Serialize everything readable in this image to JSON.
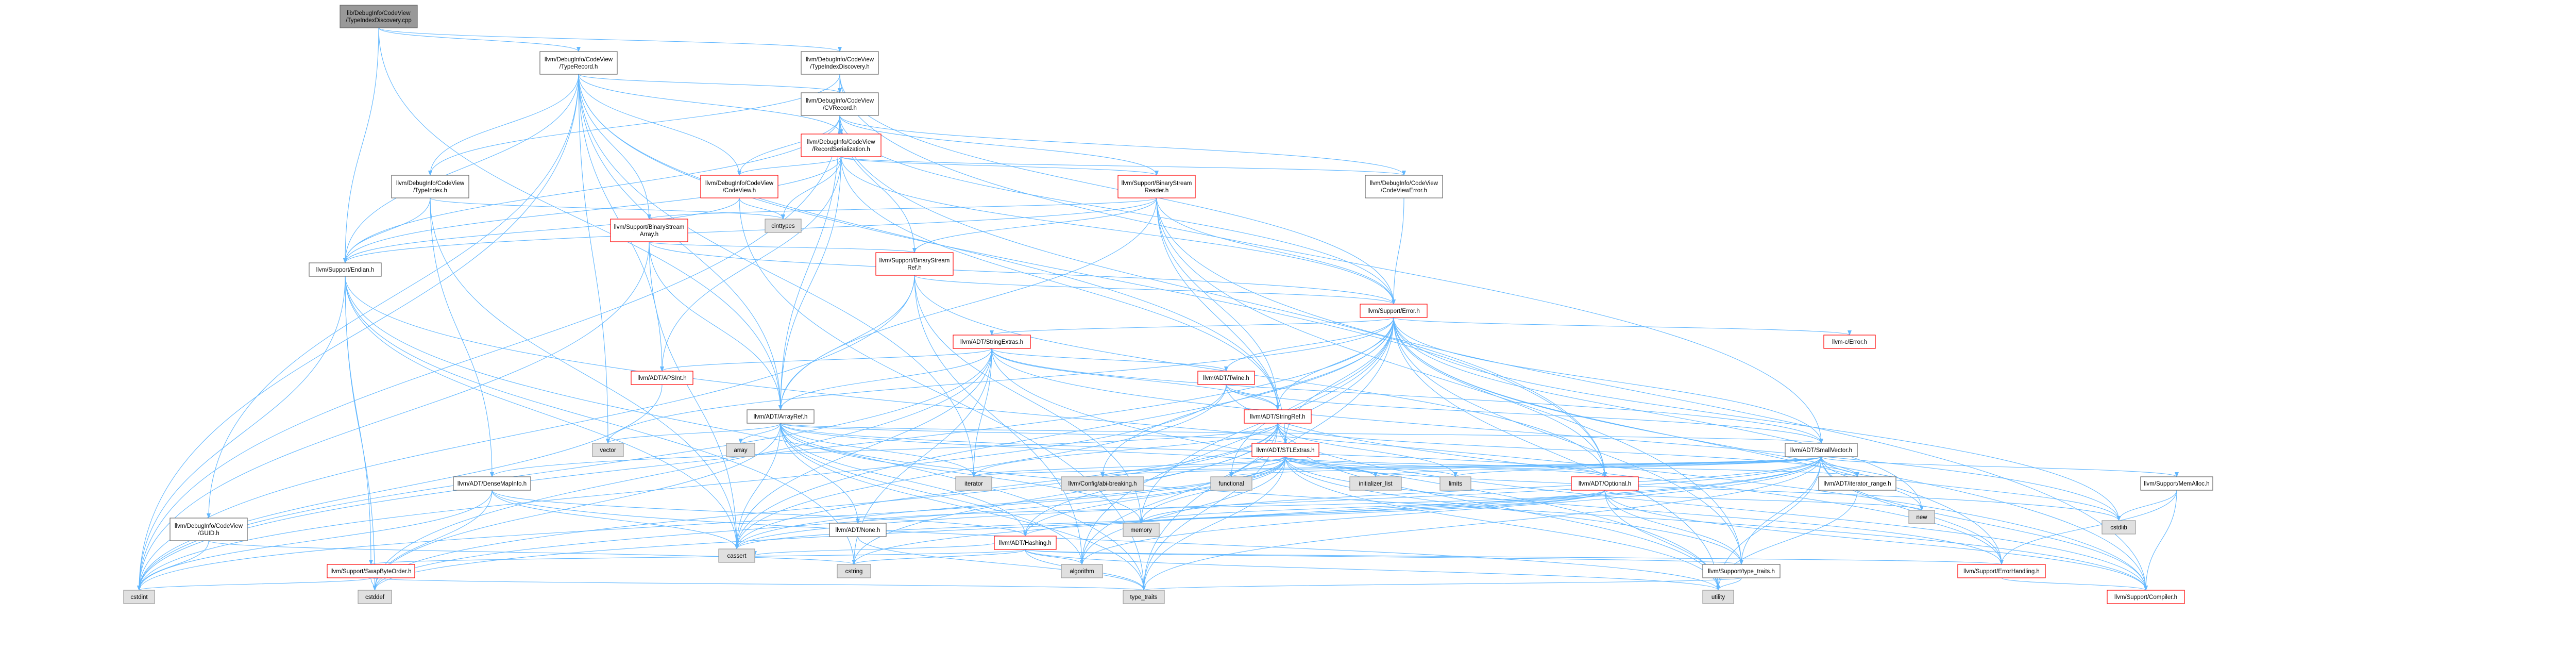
{
  "colors": {
    "edge": "#63b8ff",
    "root_fill": "#999999",
    "root_stroke": "#666666",
    "node_fill": "#ffffff",
    "node_stroke": "#666666",
    "system_fill": "#e0e0e0",
    "system_stroke": "#999999",
    "red_stroke": "#ff0000",
    "red_text": "#000000"
  },
  "nodes": [
    {
      "id": "root",
      "lines": [
        "lib/DebugInfo/CodeView",
        "/TypeIndexDiscovery.cpp"
      ],
      "kind": "root"
    },
    {
      "id": "typerecord",
      "lines": [
        "llvm/DebugInfo/CodeView",
        "/TypeRecord.h"
      ],
      "kind": "normal"
    },
    {
      "id": "typeindexdisc",
      "lines": [
        "llvm/DebugInfo/CodeView",
        "/TypeIndexDiscovery.h"
      ],
      "kind": "normal"
    },
    {
      "id": "cvrecord",
      "lines": [
        "llvm/DebugInfo/CodeView",
        "/CVRecord.h"
      ],
      "kind": "normal"
    },
    {
      "id": "recordser",
      "lines": [
        "llvm/DebugInfo/CodeView",
        "/RecordSerialization.h"
      ],
      "kind": "red"
    },
    {
      "id": "codeview",
      "lines": [
        "llvm/DebugInfo/CodeView",
        "/CodeView.h"
      ],
      "kind": "red"
    },
    {
      "id": "typeindex",
      "lines": [
        "llvm/DebugInfo/CodeView",
        "/TypeIndex.h"
      ],
      "kind": "normal"
    },
    {
      "id": "cinttypes",
      "lines": [
        "cinttypes"
      ],
      "kind": "system"
    },
    {
      "id": "bsreader",
      "lines": [
        "llvm/Support/BinaryStream",
        "Reader.h"
      ],
      "kind": "red"
    },
    {
      "id": "codeviewerror",
      "lines": [
        "llvm/DebugInfo/CodeView",
        "/CodeViewError.h"
      ],
      "kind": "normal"
    },
    {
      "id": "bsarray",
      "lines": [
        "llvm/Support/BinaryStream",
        "Array.h"
      ],
      "kind": "red"
    },
    {
      "id": "bsref",
      "lines": [
        "llvm/Support/BinaryStream",
        "Ref.h"
      ],
      "kind": "red"
    },
    {
      "id": "endian",
      "lines": [
        "llvm/Support/Endian.h"
      ],
      "kind": "normal"
    },
    {
      "id": "error",
      "lines": [
        "llvm/Support/Error.h"
      ],
      "kind": "red"
    },
    {
      "id": "stringextras",
      "lines": [
        "llvm/ADT/StringExtras.h"
      ],
      "kind": "red"
    },
    {
      "id": "cerror",
      "lines": [
        "llvm-c/Error.h"
      ],
      "kind": "red"
    },
    {
      "id": "apsint",
      "lines": [
        "llvm/ADT/APSInt.h"
      ],
      "kind": "red"
    },
    {
      "id": "twine",
      "lines": [
        "llvm/ADT/Twine.h"
      ],
      "kind": "red"
    },
    {
      "id": "stringref",
      "lines": [
        "llvm/ADT/StringRef.h"
      ],
      "kind": "red"
    },
    {
      "id": "arrayref",
      "lines": [
        "llvm/ADT/ArrayRef.h"
      ],
      "kind": "normal"
    },
    {
      "id": "vector",
      "lines": [
        "vector"
      ],
      "kind": "system"
    },
    {
      "id": "array",
      "lines": [
        "array"
      ],
      "kind": "system"
    },
    {
      "id": "smallvector",
      "lines": [
        "llvm/ADT/SmallVector.h"
      ],
      "kind": "normal"
    },
    {
      "id": "stlextras",
      "lines": [
        "llvm/ADT/STLExtras.h"
      ],
      "kind": "red"
    },
    {
      "id": "densemapinfo",
      "lines": [
        "llvm/ADT/DenseMapInfo.h"
      ],
      "kind": "normal"
    },
    {
      "id": "iterator",
      "lines": [
        "iterator"
      ],
      "kind": "system"
    },
    {
      "id": "configabi",
      "lines": [
        "llvm/Config/abi-breaking.h"
      ],
      "kind": "system"
    },
    {
      "id": "functional",
      "lines": [
        "functional"
      ],
      "kind": "system"
    },
    {
      "id": "initlist",
      "lines": [
        "initializer_list"
      ],
      "kind": "system"
    },
    {
      "id": "limits",
      "lines": [
        "limits"
      ],
      "kind": "system"
    },
    {
      "id": "optional",
      "lines": [
        "llvm/ADT/Optional.h"
      ],
      "kind": "red"
    },
    {
      "id": "itrange",
      "lines": [
        "llvm/ADT/iterator_range.h"
      ],
      "kind": "normal"
    },
    {
      "id": "memalloc",
      "lines": [
        "llvm/Support/MemAlloc.h"
      ],
      "kind": "normal"
    },
    {
      "id": "new",
      "lines": [
        "new"
      ],
      "kind": "system"
    },
    {
      "id": "guid",
      "lines": [
        "llvm/DebugInfo/CodeView",
        "/GUID.h"
      ],
      "kind": "normal"
    },
    {
      "id": "swapbyte",
      "lines": [
        "llvm/Support/SwapByteOrder.h"
      ],
      "kind": "red"
    },
    {
      "id": "hashing",
      "lines": [
        "llvm/ADT/Hashing.h"
      ],
      "kind": "red"
    },
    {
      "id": "none",
      "lines": [
        "llvm/ADT/None.h"
      ],
      "kind": "normal"
    },
    {
      "id": "memory",
      "lines": [
        "memory"
      ],
      "kind": "system"
    },
    {
      "id": "cassert",
      "lines": [
        "cassert"
      ],
      "kind": "system"
    },
    {
      "id": "cstring",
      "lines": [
        "cstring"
      ],
      "kind": "system"
    },
    {
      "id": "algorithm",
      "lines": [
        "algorithm"
      ],
      "kind": "system"
    },
    {
      "id": "typetraits",
      "lines": [
        "llvm/Support/type_traits.h"
      ],
      "kind": "normal"
    },
    {
      "id": "errorhandling",
      "lines": [
        "llvm/Support/ErrorHandling.h"
      ],
      "kind": "red"
    },
    {
      "id": "cstdlib",
      "lines": [
        "cstdlib"
      ],
      "kind": "system"
    },
    {
      "id": "cstdint",
      "lines": [
        "cstdint"
      ],
      "kind": "system"
    },
    {
      "id": "cstddef",
      "lines": [
        "cstddef"
      ],
      "kind": "system"
    },
    {
      "id": "type_traits",
      "lines": [
        "type_traits"
      ],
      "kind": "system"
    },
    {
      "id": "utility",
      "lines": [
        "utility"
      ],
      "kind": "system"
    },
    {
      "id": "compiler",
      "lines": [
        "llvm/Support/Compiler.h"
      ],
      "kind": "red"
    }
  ],
  "edges": [
    [
      "root",
      "typerecord"
    ],
    [
      "root",
      "typeindexdisc"
    ],
    [
      "root",
      "endian"
    ],
    [
      "root",
      "arrayref"
    ],
    [
      "typeindexdisc",
      "typeindex"
    ],
    [
      "typeindexdisc",
      "smallvector"
    ],
    [
      "typeindexdisc",
      "error"
    ],
    [
      "typeindexdisc",
      "cvrecord"
    ],
    [
      "typerecord",
      "cvrecord"
    ],
    [
      "typerecord",
      "guid"
    ],
    [
      "typerecord",
      "typeindex"
    ],
    [
      "typerecord",
      "codeview"
    ],
    [
      "typerecord",
      "bsarray"
    ],
    [
      "typerecord",
      "endian"
    ],
    [
      "typerecord",
      "arrayref"
    ],
    [
      "typerecord",
      "apsint"
    ],
    [
      "typerecord",
      "optional"
    ],
    [
      "typerecord",
      "stringref"
    ],
    [
      "typerecord",
      "iterator"
    ],
    [
      "typerecord",
      "vector"
    ],
    [
      "typerecord",
      "cstdint"
    ],
    [
      "typerecord",
      "recordser"
    ],
    [
      "cvrecord",
      "recordser"
    ],
    [
      "cvrecord",
      "codeview"
    ],
    [
      "cvrecord",
      "codeviewerror"
    ],
    [
      "cvrecord",
      "bsreader"
    ],
    [
      "cvrecord",
      "bsref"
    ],
    [
      "cvrecord",
      "error"
    ],
    [
      "cvrecord",
      "endian"
    ],
    [
      "cvrecord",
      "arrayref"
    ],
    [
      "cvrecord",
      "optional"
    ],
    [
      "cvrecord",
      "cstdint"
    ],
    [
      "recordser",
      "codeview"
    ],
    [
      "recordser",
      "codeviewerror"
    ],
    [
      "recordser",
      "bsreader"
    ],
    [
      "recordser",
      "apsint"
    ],
    [
      "recordser",
      "arrayref"
    ],
    [
      "recordser",
      "stringref"
    ],
    [
      "recordser",
      "error"
    ],
    [
      "recordser",
      "endian"
    ],
    [
      "recordser",
      "cinttypes"
    ],
    [
      "codeview",
      "cinttypes"
    ],
    [
      "codeview",
      "endian"
    ],
    [
      "codeview",
      "type_traits"
    ],
    [
      "typeindex",
      "endian"
    ],
    [
      "typeindex",
      "cinttypes"
    ],
    [
      "typeindex",
      "cassert"
    ],
    [
      "typeindex",
      "densemapinfo"
    ],
    [
      "codeviewerror",
      "error"
    ],
    [
      "bsreader",
      "bsarray"
    ],
    [
      "bsreader",
      "bsref"
    ],
    [
      "bsreader",
      "error"
    ],
    [
      "bsreader",
      "endian"
    ],
    [
      "bsreader",
      "arrayref"
    ],
    [
      "bsreader",
      "stringref"
    ],
    [
      "bsreader",
      "stlextras"
    ],
    [
      "bsreader",
      "typetraits"
    ],
    [
      "bsreader",
      "compiler"
    ],
    [
      "bsarray",
      "bsref"
    ],
    [
      "bsarray",
      "arrayref"
    ],
    [
      "bsarray",
      "error"
    ],
    [
      "bsarray",
      "cassert"
    ],
    [
      "bsarray",
      "cstdint"
    ],
    [
      "bsref",
      "error"
    ],
    [
      "bsref",
      "arrayref"
    ],
    [
      "bsref",
      "optional"
    ],
    [
      "bsref",
      "cstdint"
    ],
    [
      "bsref",
      "memory"
    ],
    [
      "bsref",
      "algorithm"
    ],
    [
      "endian",
      "swapbyte"
    ],
    [
      "endian",
      "compiler"
    ],
    [
      "endian",
      "cassert"
    ],
    [
      "endian",
      "cstddef"
    ],
    [
      "endian",
      "cstdint"
    ],
    [
      "endian",
      "cstring"
    ],
    [
      "endian",
      "type_traits"
    ],
    [
      "error",
      "cerror"
    ],
    [
      "error",
      "stlextras"
    ],
    [
      "error",
      "smallvector"
    ],
    [
      "error",
      "stringextras"
    ],
    [
      "error",
      "twine"
    ],
    [
      "error",
      "configabi"
    ],
    [
      "error",
      "abi"
    ],
    [
      "error",
      "compiler"
    ],
    [
      "error",
      "errorhandling"
    ],
    [
      "error",
      "typetraits"
    ],
    [
      "error",
      "algorithm"
    ],
    [
      "error",
      "cassert"
    ],
    [
      "error",
      "cstdint"
    ],
    [
      "error",
      "cstdlib"
    ],
    [
      "error",
      "functional"
    ],
    [
      "error",
      "memory"
    ],
    [
      "error",
      "new"
    ],
    [
      "error",
      "system_error"
    ],
    [
      "error",
      "type_traits"
    ],
    [
      "error",
      "utility"
    ],
    [
      "error",
      "vector"
    ],
    [
      "error",
      "stringref"
    ],
    [
      "error",
      "optional"
    ],
    [
      "stringextras",
      "apsint"
    ],
    [
      "stringextras",
      "arrayref"
    ],
    [
      "stringextras",
      "smallvector"
    ],
    [
      "stringextras",
      "stringref"
    ],
    [
      "stringextras",
      "twine"
    ],
    [
      "stringextras",
      "cassert"
    ],
    [
      "stringextras",
      "cstddef"
    ],
    [
      "stringextras",
      "cstdint"
    ],
    [
      "stringextras",
      "cstdlib"
    ],
    [
      "stringextras",
      "cstring"
    ],
    [
      "stringextras",
      "iterator"
    ],
    [
      "stringextras",
      "string"
    ],
    [
      "stringextras",
      "utility"
    ],
    [
      "twine",
      "smallvector"
    ],
    [
      "twine",
      "stringref"
    ],
    [
      "twine",
      "errorhandling"
    ],
    [
      "twine",
      "cassert"
    ],
    [
      "twine",
      "cstdint"
    ],
    [
      "stringref",
      "stlextras"
    ],
    [
      "stringref",
      "iterator_range"
    ],
    [
      "stringref",
      "compiler"
    ],
    [
      "stringref",
      "algorithm"
    ],
    [
      "stringref",
      "cassert"
    ],
    [
      "stringref",
      "cstddef"
    ],
    [
      "stringref",
      "cstring"
    ],
    [
      "stringref",
      "limits"
    ],
    [
      "stringref",
      "type_traits"
    ],
    [
      "stringref",
      "utility"
    ],
    [
      "stringref",
      "densemapinfo"
    ],
    [
      "stringref",
      "hashing"
    ],
    [
      "stringref",
      "itrange"
    ],
    [
      "stringref",
      "iterator"
    ],
    [
      "arrayref",
      "hashing"
    ],
    [
      "arrayref",
      "none"
    ],
    [
      "arrayref",
      "smallvector"
    ],
    [
      "arrayref",
      "stlextras"
    ],
    [
      "arrayref",
      "compiler"
    ],
    [
      "arrayref",
      "algorithm"
    ],
    [
      "arrayref",
      "array"
    ],
    [
      "arrayref",
      "cassert"
    ],
    [
      "arrayref",
      "cstddef"
    ],
    [
      "arrayref",
      "initlist"
    ],
    [
      "arrayref",
      "iterator"
    ],
    [
      "arrayref",
      "memory"
    ],
    [
      "arrayref",
      "type_traits"
    ],
    [
      "arrayref",
      "vector"
    ],
    [
      "arrayref",
      "optional"
    ],
    [
      "smallvector",
      "compiler"
    ],
    [
      "smallvector",
      "memalloc"
    ],
    [
      "smallvector",
      "typetraits"
    ],
    [
      "smallvector",
      "itrange"
    ],
    [
      "smallvector",
      "algorithm"
    ],
    [
      "smallvector",
      "cassert"
    ],
    [
      "smallvector",
      "cstddef"
    ],
    [
      "smallvector",
      "cstdlib"
    ],
    [
      "smallvector",
      "cstring"
    ],
    [
      "smallvector",
      "functional"
    ],
    [
      "smallvector",
      "initlist"
    ],
    [
      "smallvector",
      "iterator"
    ],
    [
      "smallvector",
      "limits"
    ],
    [
      "smallvector",
      "memory"
    ],
    [
      "smallvector",
      "new"
    ],
    [
      "smallvector",
      "type_traits"
    ],
    [
      "smallvector",
      "utility"
    ],
    [
      "smallvector",
      "configabi"
    ],
    [
      "smallvector",
      "errorhandling"
    ],
    [
      "stlextras",
      "optional"
    ],
    [
      "stlextras",
      "itrange"
    ],
    [
      "stlextras",
      "configabi"
    ],
    [
      "stlextras",
      "errorhandling"
    ],
    [
      "stlextras",
      "typetraits"
    ],
    [
      "stlextras",
      "algorithm"
    ],
    [
      "stlextras",
      "cassert"
    ],
    [
      "stlextras",
      "cstddef"
    ],
    [
      "stlextras",
      "cstdint"
    ],
    [
      "stlextras",
      "cstdlib"
    ],
    [
      "stlextras",
      "functional"
    ],
    [
      "stlextras",
      "initlist"
    ],
    [
      "stlextras",
      "iterator"
    ],
    [
      "stlextras",
      "limits"
    ],
    [
      "stlextras",
      "memory"
    ],
    [
      "stlextras",
      "type_traits"
    ],
    [
      "stlextras",
      "utility"
    ],
    [
      "stlextras",
      "hashing"
    ],
    [
      "densemapinfo",
      "hashing"
    ],
    [
      "densemapinfo",
      "cassert"
    ],
    [
      "densemapinfo",
      "cstddef"
    ],
    [
      "densemapinfo",
      "cstdint"
    ],
    [
      "densemapinfo",
      "utility"
    ],
    [
      "optional",
      "none"
    ],
    [
      "optional",
      "compiler"
    ],
    [
      "optional",
      "typetraits"
    ],
    [
      "optional",
      "cassert"
    ],
    [
      "optional",
      "memory"
    ],
    [
      "optional",
      "new"
    ],
    [
      "optional",
      "utility"
    ],
    [
      "optional",
      "hashing"
    ],
    [
      "itrange",
      "utility"
    ],
    [
      "memalloc",
      "compiler"
    ],
    [
      "memalloc",
      "errorhandling"
    ],
    [
      "memalloc",
      "cstdlib"
    ],
    [
      "guid",
      "cstdint"
    ],
    [
      "guid",
      "cstring"
    ],
    [
      "swapbyte",
      "cstddef"
    ],
    [
      "swapbyte",
      "cstdint"
    ],
    [
      "swapbyte",
      "type_traits"
    ],
    [
      "hashing",
      "errorhandling"
    ],
    [
      "hashing",
      "swapbyte"
    ],
    [
      "hashing",
      "typetraits"
    ],
    [
      "hashing",
      "algorithm"
    ],
    [
      "hashing",
      "cassert"
    ],
    [
      "hashing",
      "cstring"
    ],
    [
      "hashing",
      "type_traits"
    ],
    [
      "hashing",
      "utility"
    ],
    [
      "none",
      "type_traits"
    ],
    [
      "typetraits",
      "type_traits"
    ],
    [
      "typetraits",
      "utility"
    ],
    [
      "errorhandling",
      "compiler"
    ],
    [
      "apsint",
      "cstdint"
    ]
  ]
}
